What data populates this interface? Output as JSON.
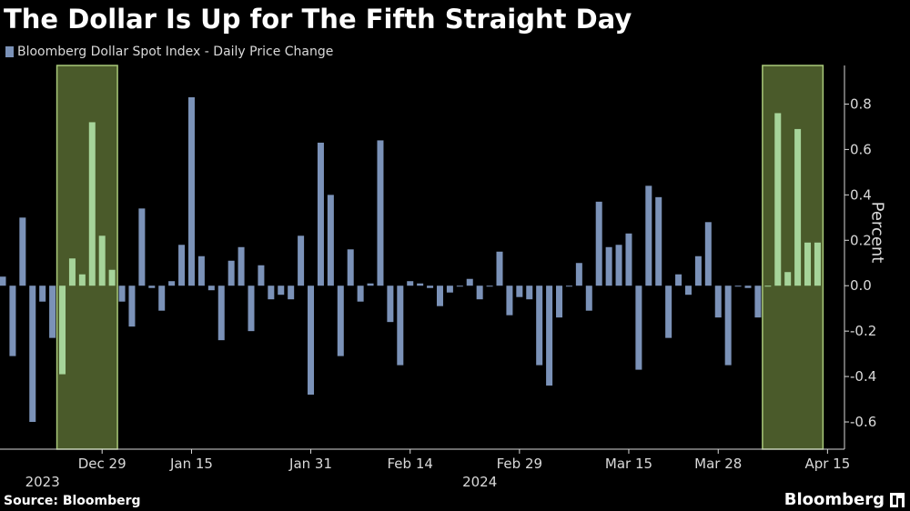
{
  "colors": {
    "background": "#000000",
    "bar": "#7b92b8",
    "highlight_bar": "#a6d49a",
    "highlight_band": "#4a5a2a",
    "highlight_border": "#a9c97a",
    "axis_text": "#d9d9d9"
  },
  "brand": {
    "name": "Bloomberg",
    "icon": "bloomberg-terminal-icon"
  },
  "chart_data": {
    "type": "bar",
    "title": "The Dollar Is Up for The Fifth Straight Day",
    "legend": [
      "Bloomberg Dollar Spot Index - Daily Price Change"
    ],
    "legend_position": "top-left",
    "ylabel": "Percent",
    "ylim": [
      -0.72,
      0.97
    ],
    "yticks": [
      0.8,
      0.6,
      0.4,
      0.2,
      0.0,
      -0.2,
      -0.4,
      -0.6
    ],
    "ytick_labels": [
      "0.8",
      "0.6",
      "0.4",
      "0.2",
      "0.0",
      "-0.2",
      "-0.4",
      "-0.6"
    ],
    "y_axis_side": "right",
    "grid": false,
    "xticks": [
      {
        "label": "Dec 29",
        "index": 10
      },
      {
        "label": "Jan 15",
        "index": 19
      },
      {
        "label": "Jan 31",
        "index": 31
      },
      {
        "label": "Feb 14",
        "index": 41
      },
      {
        "label": "Feb 29",
        "index": 52
      },
      {
        "label": "Mar 15",
        "index": 63
      },
      {
        "label": "Mar 28",
        "index": 72
      },
      {
        "label": "Apr 15",
        "index": 83
      }
    ],
    "year_labels": [
      {
        "label": "2023",
        "index": 4
      },
      {
        "label": "2024",
        "index": 48
      }
    ],
    "values": [
      0.04,
      -0.31,
      0.3,
      -0.6,
      -0.07,
      -0.23,
      -0.39,
      0.12,
      0.05,
      0.72,
      0.22,
      0.07,
      -0.07,
      -0.18,
      0.34,
      -0.01,
      -0.11,
      0.02,
      0.18,
      0.83,
      0.13,
      -0.02,
      -0.24,
      0.11,
      0.17,
      -0.2,
      0.09,
      -0.06,
      -0.04,
      -0.06,
      0.22,
      -0.48,
      0.63,
      0.4,
      -0.31,
      0.16,
      -0.07,
      0.01,
      0.64,
      -0.16,
      -0.35,
      0.02,
      0.01,
      -0.01,
      -0.09,
      -0.03,
      0.0,
      0.03,
      -0.06,
      0.0,
      0.15,
      -0.13,
      -0.05,
      -0.06,
      -0.35,
      -0.44,
      -0.14,
      0.0,
      0.1,
      -0.11,
      0.37,
      0.17,
      0.18,
      0.23,
      -0.37,
      0.44,
      0.39,
      -0.23,
      0.05,
      -0.04,
      0.13,
      0.28,
      -0.14,
      -0.35,
      0.0,
      -0.01,
      -0.14,
      0.0,
      0.76,
      0.06,
      0.69,
      0.19,
      0.19
    ],
    "highlight_ranges": [
      {
        "start": 6,
        "end": 11
      },
      {
        "start": 77,
        "end": 82
      }
    ]
  },
  "footer": {
    "source": "Source: Bloomberg"
  }
}
